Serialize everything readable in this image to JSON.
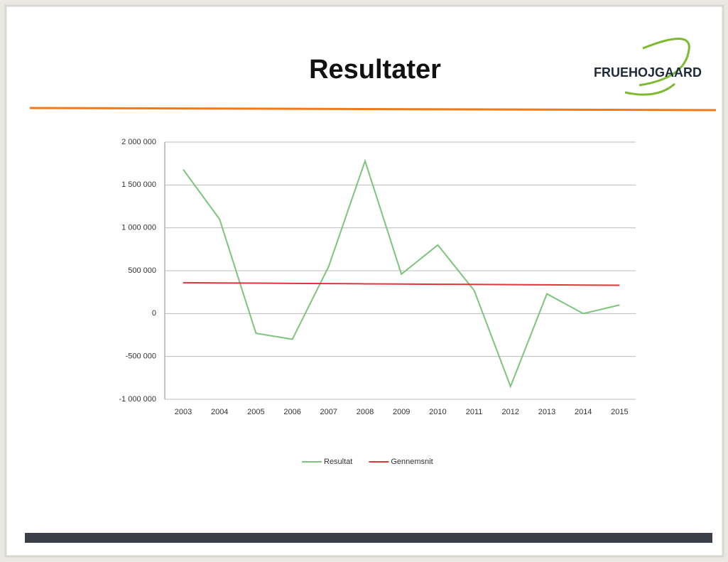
{
  "chart_data": {
    "type": "line",
    "title": "Resultater",
    "logo": "FRUEHOJGAARD",
    "categories": [
      "2003",
      "2004",
      "2005",
      "2006",
      "2007",
      "2008",
      "2009",
      "2010",
      "2011",
      "2012",
      "2013",
      "2014",
      "2015"
    ],
    "series": [
      {
        "name": "Resultat",
        "color": "#7dc47d",
        "values": [
          1680000,
          1100000,
          -230000,
          -300000,
          550000,
          1780000,
          460000,
          800000,
          270000,
          -850000,
          230000,
          0,
          100000
        ]
      },
      {
        "name": "Gennemsnit",
        "color": "#e0363a",
        "values": [
          360000,
          357000,
          355000,
          352000,
          350000,
          347000,
          345000,
          342000,
          340000,
          337000,
          335000,
          332000,
          330000
        ]
      }
    ],
    "ylim": [
      -1000000,
      2000000
    ],
    "yticks": [
      {
        "value": -1000000,
        "label": "-1 000 000"
      },
      {
        "value": -500000,
        "label": "-500 000"
      },
      0,
      {
        "value": 500000,
        "label": "500 000"
      },
      {
        "value": 1000000,
        "label": "1 000 000"
      },
      {
        "value": 1500000,
        "label": "1 500 000"
      },
      {
        "value": 2000000,
        "label": "2 000 000"
      }
    ],
    "grid": true,
    "legend": "bottom"
  }
}
